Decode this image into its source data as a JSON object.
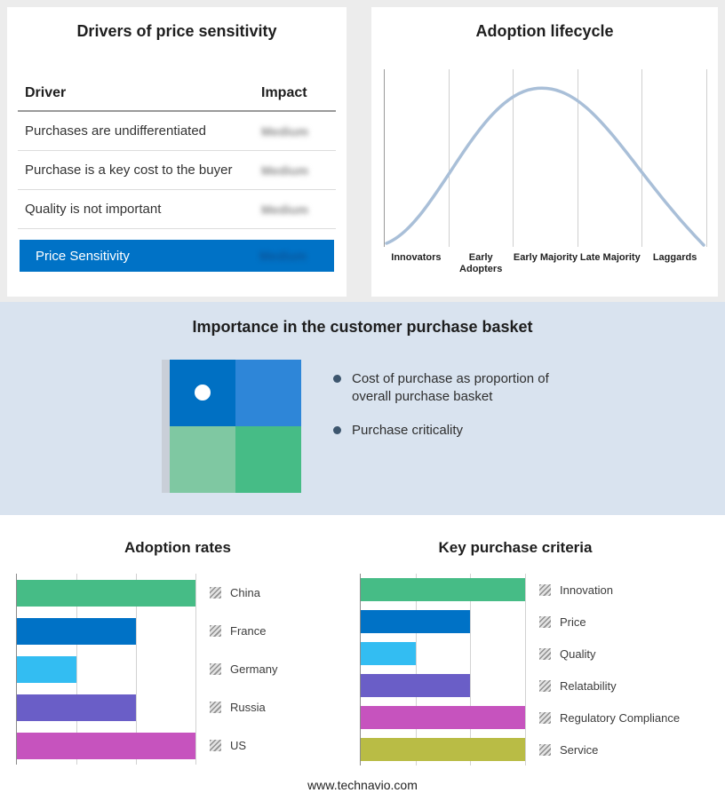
{
  "drivers_panel": {
    "title": "Drivers of price sensitivity",
    "columns": {
      "driver": "Driver",
      "impact": "Impact"
    },
    "rows": [
      {
        "driver": "Purchases are undifferentiated",
        "impact": "Medium"
      },
      {
        "driver": "Purchase is a key cost to the buyer",
        "impact": "Medium"
      },
      {
        "driver": "Quality is not important",
        "impact": "Medium"
      }
    ],
    "summary": {
      "label": "Price Sensitivity",
      "impact": "Medium"
    },
    "accent_color": "#0072c6",
    "impact_values_blurred": true
  },
  "basket_panel": {
    "title": "Importance in the customer purchase basket",
    "bullets": [
      "Cost of purchase as proportion of overall purchase basket",
      "Purchase criticality"
    ],
    "quadrant_colors": [
      "#0070c3",
      "#2e86d8",
      "#7fc8a2",
      "#46bc86"
    ],
    "background": "#d9e3ef"
  },
  "footer": {
    "url": "www.technavio.com"
  },
  "chart_data": [
    {
      "id": "adoption-lifecycle",
      "type": "area",
      "title": "Adoption lifecycle",
      "categories": [
        "Innovators",
        "Early Adopters",
        "Early Majority",
        "Late Majority",
        "Laggards"
      ],
      "shape": "bell-curve",
      "peak_stage": "Early Majority",
      "curve_color": "#a9bfd8",
      "grid": true,
      "legend_position": "none"
    },
    {
      "id": "adoption-rates",
      "type": "bar",
      "orientation": "horizontal",
      "title": "Adoption rates",
      "categories": [
        "China",
        "France",
        "Germany",
        "Russia",
        "US"
      ],
      "values": [
        3,
        2,
        1,
        2,
        3
      ],
      "colors": [
        "#46bc86",
        "#0072c6",
        "#33bdf2",
        "#6a5ec7",
        "#c653be"
      ],
      "xlim": [
        0,
        3
      ],
      "grid": true,
      "legend_position": "right"
    },
    {
      "id": "key-purchase-criteria",
      "type": "bar",
      "orientation": "horizontal",
      "title": "Key purchase criteria",
      "categories": [
        "Innovation",
        "Price",
        "Quality",
        "Relatability",
        "Regulatory Compliance",
        "Service"
      ],
      "values": [
        3,
        2,
        1,
        2,
        3,
        3
      ],
      "colors": [
        "#46bc86",
        "#0072c6",
        "#33bdf2",
        "#6a5ec7",
        "#c653be",
        "#b9bc45"
      ],
      "xlim": [
        0,
        3
      ],
      "grid": true,
      "legend_position": "right"
    }
  ]
}
